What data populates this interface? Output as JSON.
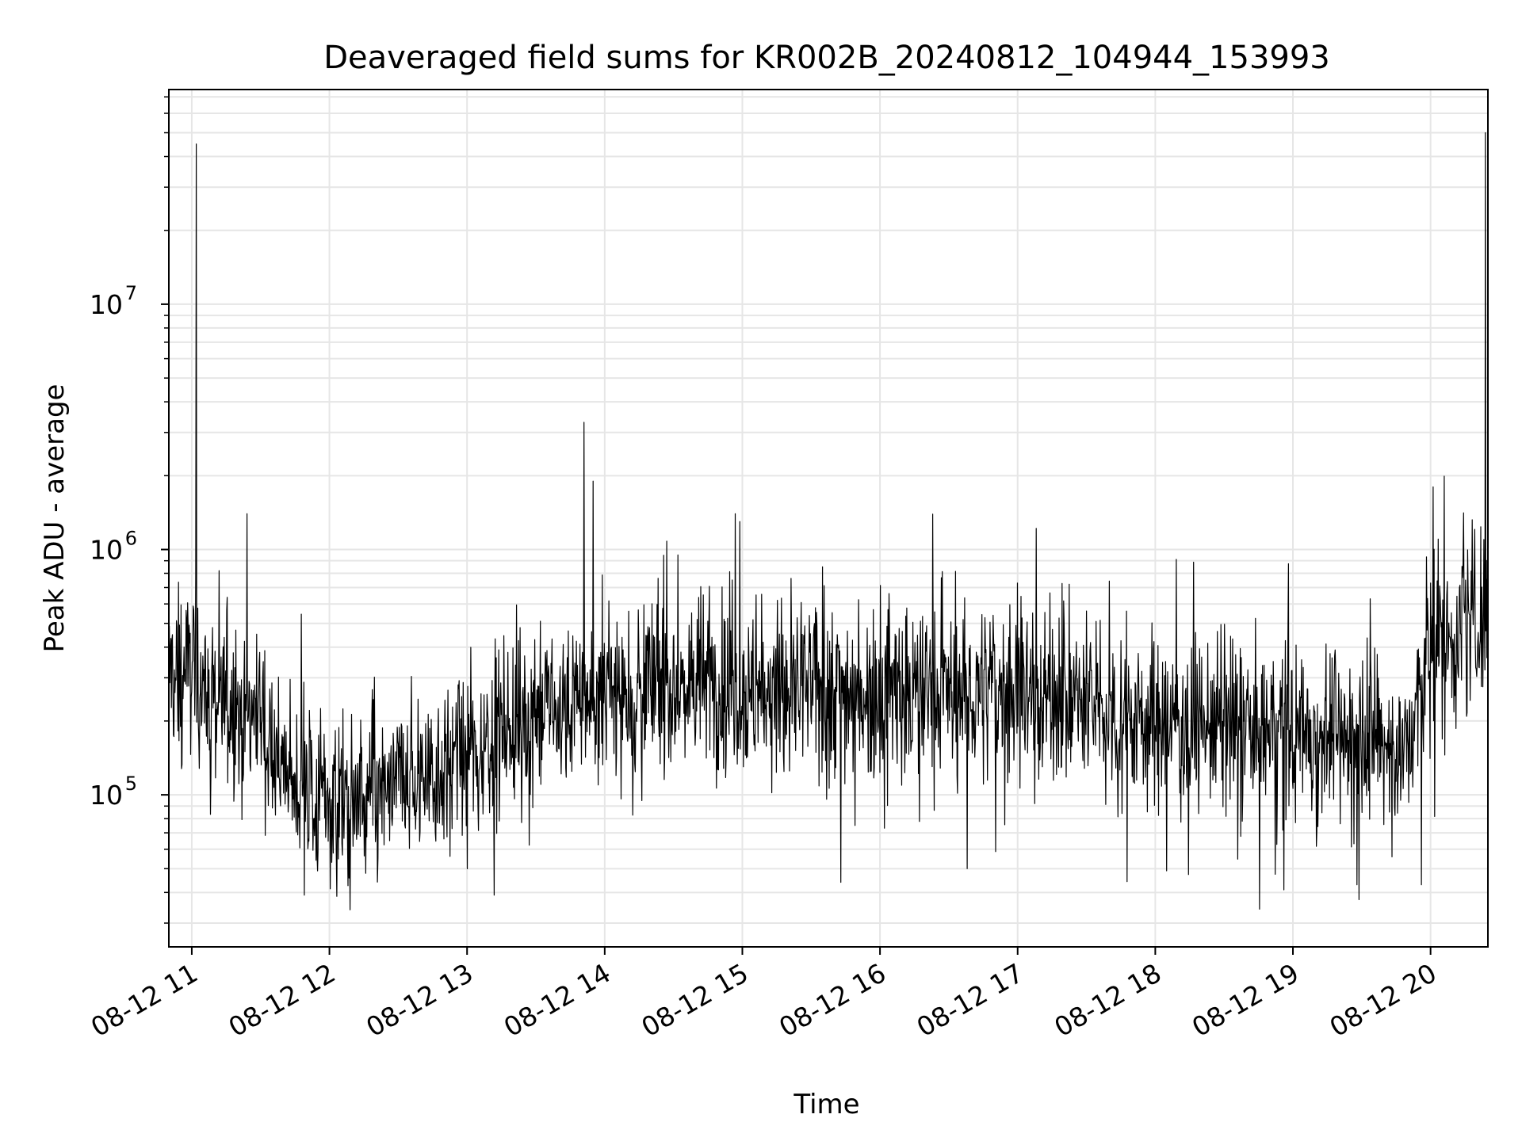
{
  "chart_data": {
    "type": "line",
    "title": "Deaveraged field sums for KR002B_20240812_104944_153993",
    "xlabel": "Time",
    "ylabel": "Peak ADU - average",
    "yscale": "log",
    "grid": true,
    "line_color": "#000000",
    "grid_color": "#e6e6e6",
    "xlim": [
      "2024-08-12 10:50",
      "2024-08-12 20:25"
    ],
    "ylim": [
      24000,
      75000000
    ],
    "x_ticks": [
      "08-12 11",
      "08-12 12",
      "08-12 13",
      "08-12 14",
      "08-12 15",
      "08-12 16",
      "08-12 17",
      "08-12 18",
      "08-12 19",
      "08-12 20"
    ],
    "y_ticks": [
      {
        "value": 100000,
        "base": "10",
        "exp": "5"
      },
      {
        "value": 1000000,
        "base": "10",
        "exp": "6"
      },
      {
        "value": 10000000,
        "base": "10",
        "exp": "7"
      }
    ],
    "series": [
      {
        "x": [
          "2024-08-12 10:50",
          "2024-08-12 10:55",
          "2024-08-12 11:00",
          "2024-08-12 11:05",
          "2024-08-12 11:10",
          "2024-08-12 11:15",
          "2024-08-12 11:20",
          "2024-08-12 11:25",
          "2024-08-12 11:30",
          "2024-08-12 11:40",
          "2024-08-12 11:50",
          "2024-08-12 12:00",
          "2024-08-12 12:10",
          "2024-08-12 12:20",
          "2024-08-12 12:30",
          "2024-08-12 12:40",
          "2024-08-12 12:50",
          "2024-08-12 13:00",
          "2024-08-12 13:15",
          "2024-08-12 13:30",
          "2024-08-12 13:45",
          "2024-08-12 14:00",
          "2024-08-12 14:15",
          "2024-08-12 14:30",
          "2024-08-12 14:45",
          "2024-08-12 15:00",
          "2024-08-12 15:30",
          "2024-08-12 16:00",
          "2024-08-12 16:30",
          "2024-08-12 17:00",
          "2024-08-12 17:30",
          "2024-08-12 18:00",
          "2024-08-12 18:30",
          "2024-08-12 19:00",
          "2024-08-12 19:30",
          "2024-08-12 19:50",
          "2024-08-12 20:00",
          "2024-08-12 20:10",
          "2024-08-12 20:20",
          "2024-08-12 20:25"
        ],
        "y": [
          330000,
          300000,
          350000,
          280000,
          250000,
          230000,
          220000,
          210000,
          240000,
          120000,
          105000,
          95000,
          90000,
          95000,
          110000,
          120000,
          130000,
          140000,
          190000,
          210000,
          230000,
          250000,
          270000,
          280000,
          290000,
          260000,
          270000,
          270000,
          260000,
          270000,
          230000,
          200000,
          190000,
          180000,
          170000,
          150000,
          400000,
          450000,
          500000,
          550000
        ]
      }
    ],
    "spikes": [
      {
        "x": "2024-08-12 11:02",
        "y": 45000000
      },
      {
        "x": "2024-08-12 11:24",
        "y": 1400000
      },
      {
        "x": "2024-08-12 11:12",
        "y": 820000
      },
      {
        "x": "2024-08-12 13:51",
        "y": 3300000
      },
      {
        "x": "2024-08-12 13:55",
        "y": 1900000
      },
      {
        "x": "2024-08-12 14:57",
        "y": 1400000
      },
      {
        "x": "2024-08-12 14:59",
        "y": 1300000
      },
      {
        "x": "2024-08-12 15:35",
        "y": 850000
      },
      {
        "x": "2024-08-12 17:00",
        "y": 730000
      },
      {
        "x": "2024-08-12 20:01",
        "y": 1800000
      },
      {
        "x": "2024-08-12 20:24",
        "y": 50000000
      }
    ],
    "dips": [
      {
        "x": "2024-08-12 12:09",
        "y": 34000
      },
      {
        "x": "2024-08-12 11:49",
        "y": 39000
      },
      {
        "x": "2024-08-12 15:43",
        "y": 44000
      },
      {
        "x": "2024-08-12 16:38",
        "y": 50000
      },
      {
        "x": "2024-08-12 18:05",
        "y": 49000
      },
      {
        "x": "2024-08-12 18:56",
        "y": 41000
      },
      {
        "x": "2024-08-12 19:28",
        "y": 43000
      },
      {
        "x": "2024-08-12 19:56",
        "y": 43000
      }
    ]
  }
}
